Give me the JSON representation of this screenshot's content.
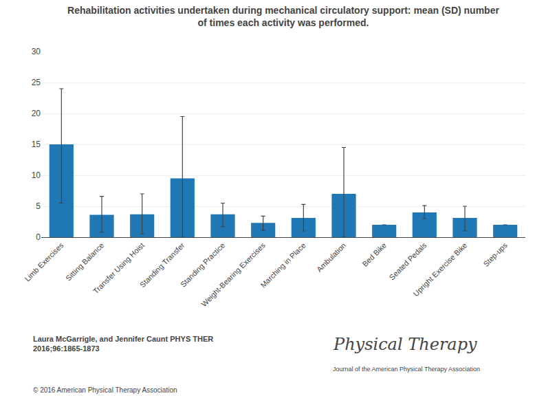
{
  "chart_data": {
    "type": "bar",
    "title": "Rehabilitation activities undertaken during mechanical circulatory support: mean (SD) number\nof times each activity was performed.",
    "categories": [
      "Limb Exercises",
      "Sitting Balance",
      "Transfer Using Hoist",
      "Standing Transfer",
      "Standing Practice",
      "Weight-Bearing Exercises",
      "Marching in Place",
      "Ambulation",
      "Bed Bike",
      "Seated Pedals",
      "Upright Exercise Bike",
      "Step-ups"
    ],
    "values": [
      15.0,
      3.6,
      3.7,
      9.5,
      3.7,
      2.3,
      3.1,
      7.0,
      2.0,
      4.0,
      3.1,
      2.0
    ],
    "errors_upper": [
      9.0,
      3.0,
      3.3,
      10.0,
      1.8,
      1.1,
      2.2,
      7.5,
      0.0,
      1.1,
      1.9,
      0.0
    ],
    "errors_lower": [
      9.5,
      2.8,
      3.2,
      9.5,
      2.0,
      1.2,
      2.1,
      7.0,
      0.0,
      1.0,
      2.1,
      0.0
    ],
    "ylim": [
      0,
      30
    ],
    "yticks": [
      0,
      5,
      10,
      15,
      20,
      25,
      30
    ],
    "grid": true,
    "annotations": [
      "Laura McGarrigle, and Jennifer Caunt PHYS THER\n2016;96:1865-1873",
      "© 2016 American Physical Therapy Association",
      "Physical Therapy",
      "Journal of the American Physical Therapy Association"
    ]
  }
}
